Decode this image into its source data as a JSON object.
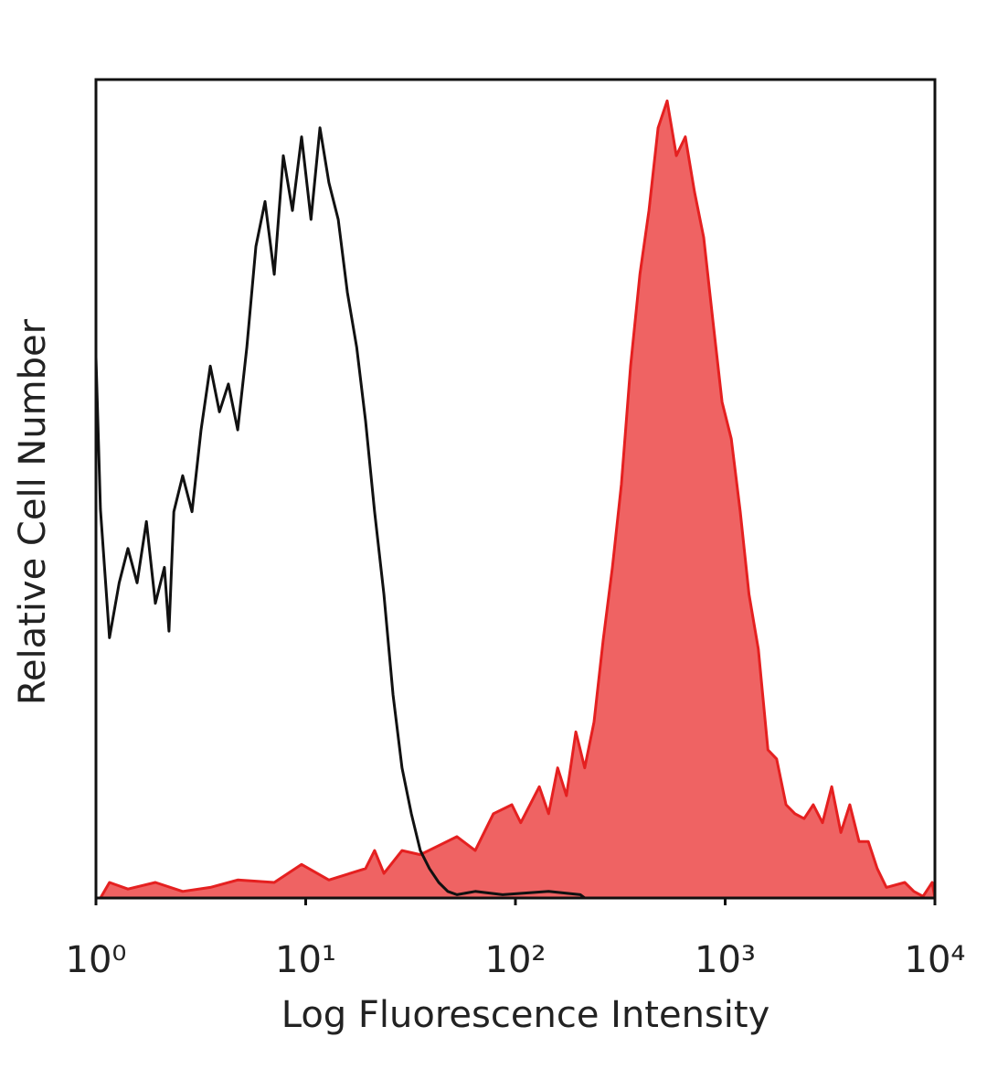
{
  "chart_data": {
    "type": "area",
    "xscale": "log",
    "xlabel": "Log Fluorescence Intensity",
    "ylabel": "Relative Cell Number",
    "xlim": [
      1,
      10000
    ],
    "ylim": [
      0,
      100
    ],
    "xticks": [
      {
        "value": 1,
        "label": "10⁰"
      },
      {
        "value": 10,
        "label": "10¹"
      },
      {
        "value": 100,
        "label": "10²"
      },
      {
        "value": 1000,
        "label": "10³"
      },
      {
        "value": 10000,
        "label": "10⁴"
      }
    ],
    "series": [
      {
        "color": "#111111",
        "fill": false,
        "x": [
          1,
          1.05,
          1.16,
          1.29,
          1.42,
          1.57,
          1.74,
          1.92,
          2.12,
          2.23,
          2.35,
          2.59,
          2.87,
          3.17,
          3.51,
          3.88,
          4.28,
          4.74,
          5.24,
          5.79,
          6.4,
          7.08,
          7.82,
          8.65,
          9.56,
          10.6,
          11.7,
          12.9,
          14.3,
          15.8,
          17.5,
          19.3,
          21.3,
          23.6,
          26.1,
          28.8,
          31.9,
          35.2,
          38.9,
          43.1,
          47.6,
          52.6,
          64.3,
          86.9,
          144,
          204,
          214
        ],
        "values": [
          66.1,
          47.5,
          31.8,
          38.5,
          42.7,
          38.5,
          46.0,
          36.0,
          40.4,
          32.6,
          47.2,
          51.6,
          47.2,
          57.2,
          65.0,
          59.4,
          62.8,
          57.2,
          67.3,
          79.6,
          85.1,
          76.2,
          90.7,
          84.0,
          93.0,
          82.9,
          94.1,
          87.4,
          82.9,
          74.0,
          67.3,
          58.3,
          47.2,
          37.1,
          24.8,
          15.9,
          10.3,
          5.8,
          3.6,
          1.9,
          0.8,
          0.4,
          0.8,
          0.4,
          0.8,
          0.4,
          0
        ]
      },
      {
        "color": "#e52020",
        "fill": true,
        "fill_color": "#ef6363",
        "x": [
          1.05,
          1.16,
          1.42,
          1.92,
          2.59,
          3.51,
          4.74,
          7.08,
          9.56,
          12.9,
          19.3,
          21.3,
          23.6,
          28.8,
          35.2,
          43.1,
          52.6,
          64.3,
          78.5,
          96.2,
          106,
          130,
          144,
          159,
          175,
          194,
          214,
          237,
          262,
          290,
          320,
          354,
          392,
          433,
          479,
          529,
          585,
          646,
          714,
          790,
          873,
          966,
          1070,
          1180,
          1300,
          1440,
          1600,
          1760,
          1950,
          2150,
          2380,
          2630,
          2910,
          3220,
          3560,
          3930,
          4350,
          4810,
          5310,
          5870,
          7180,
          7940,
          8780,
          9700,
          10000
        ],
        "values": [
          0,
          1.9,
          1.1,
          1.9,
          0.8,
          1.3,
          2.2,
          1.9,
          4.1,
          2.2,
          3.6,
          5.8,
          3.0,
          5.8,
          5.3,
          6.4,
          7.5,
          5.8,
          10.3,
          11.4,
          9.2,
          13.6,
          10.3,
          15.9,
          12.5,
          20.3,
          15.9,
          21.5,
          31.5,
          40.4,
          50.5,
          65.0,
          76.2,
          84.0,
          94.1,
          97.4,
          90.7,
          93.0,
          86.3,
          80.7,
          70.6,
          60.6,
          56.1,
          47.2,
          37.1,
          30.4,
          18.1,
          17.0,
          11.4,
          10.3,
          9.7,
          11.4,
          9.2,
          13.6,
          8.0,
          11.4,
          6.9,
          6.9,
          3.6,
          1.3,
          1.9,
          0.8,
          0.2,
          1.9,
          0
        ]
      }
    ]
  }
}
